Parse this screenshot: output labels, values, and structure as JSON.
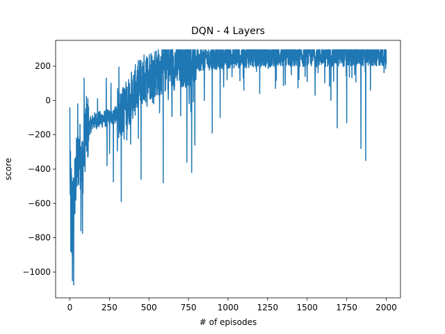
{
  "chart_data": {
    "type": "line",
    "title": "DQN - 4 Layers",
    "xlabel": "# of episodes",
    "ylabel": "score",
    "xlim": [
      -90,
      2090
    ],
    "ylim": [
      -1150,
      350
    ],
    "xticks": [
      0,
      250,
      500,
      750,
      1000,
      1250,
      1500,
      1750,
      2000
    ],
    "yticks": [
      -1000,
      -800,
      -600,
      -400,
      -200,
      0,
      200
    ],
    "xtick_labels": [
      "0",
      "250",
      "500",
      "750",
      "1000",
      "1250",
      "1500",
      "1750",
      "2000"
    ],
    "ytick_labels": [
      "−1000",
      "−800",
      "−600",
      "−400",
      "−200",
      "0",
      "200"
    ],
    "grid": false,
    "series": [
      {
        "color": "#1f77b4",
        "episodes": 2000,
        "baseline": [
          [
            0,
            -450
          ],
          [
            10,
            -560
          ],
          [
            20,
            -620
          ],
          [
            40,
            -420
          ],
          [
            60,
            -300
          ],
          [
            80,
            -380
          ],
          [
            100,
            -180
          ],
          [
            150,
            -120
          ],
          [
            200,
            -110
          ],
          [
            250,
            -100
          ],
          [
            300,
            -80
          ],
          [
            350,
            -40
          ],
          [
            400,
            40
          ],
          [
            450,
            110
          ],
          [
            500,
            150
          ],
          [
            600,
            190
          ],
          [
            700,
            220
          ],
          [
            800,
            240
          ],
          [
            1000,
            255
          ],
          [
            1200,
            262
          ],
          [
            1500,
            265
          ],
          [
            2000,
            268
          ]
        ],
        "spikes": [
          [
            0,
            -40
          ],
          [
            6,
            -880
          ],
          [
            12,
            -890
          ],
          [
            16,
            -1050
          ],
          [
            24,
            -1075
          ],
          [
            32,
            -660
          ],
          [
            50,
            -20
          ],
          [
            70,
            -760
          ],
          [
            80,
            -775
          ],
          [
            90,
            130
          ],
          [
            100,
            -50
          ],
          [
            175,
            10
          ],
          [
            230,
            130
          ],
          [
            235,
            -380
          ],
          [
            260,
            100
          ],
          [
            275,
            -475
          ],
          [
            310,
            195
          ],
          [
            325,
            -590
          ],
          [
            345,
            0
          ],
          [
            360,
            -230
          ],
          [
            400,
            20
          ],
          [
            450,
            -460
          ],
          [
            480,
            230
          ],
          [
            530,
            -20
          ],
          [
            590,
            -480
          ],
          [
            640,
            260
          ],
          [
            700,
            -90
          ],
          [
            740,
            -360
          ],
          [
            770,
            -420
          ],
          [
            790,
            -260
          ],
          [
            850,
            0
          ],
          [
            900,
            -190
          ],
          [
            950,
            -100
          ],
          [
            1100,
            60
          ],
          [
            1200,
            40
          ],
          [
            1300,
            70
          ],
          [
            1400,
            150
          ],
          [
            1500,
            110
          ],
          [
            1550,
            30
          ],
          [
            1650,
            0
          ],
          [
            1690,
            -160
          ],
          [
            1750,
            -130
          ],
          [
            1800,
            150
          ],
          [
            1840,
            -280
          ],
          [
            1870,
            -350
          ],
          [
            1900,
            60
          ],
          [
            1950,
            250
          ]
        ],
        "upper": 295
      }
    ]
  }
}
